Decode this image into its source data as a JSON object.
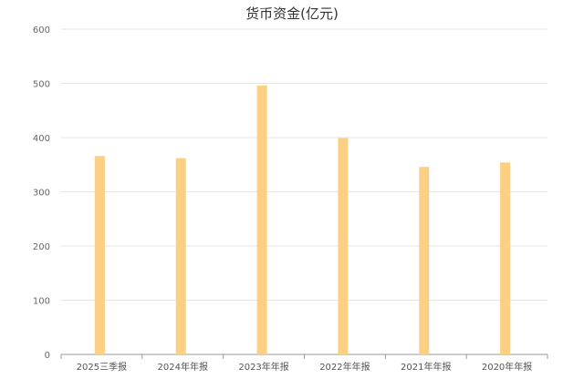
{
  "chart_data": {
    "type": "bar",
    "title": "货币资金(亿元)",
    "categories": [
      "2025三季报",
      "2024年年报",
      "2023年年报",
      "2022年年报",
      "2021年年报",
      "2020年年报"
    ],
    "values": [
      366,
      362,
      496,
      399,
      346,
      354
    ],
    "ylim": [
      0,
      600
    ],
    "yticks": [
      0,
      100,
      200,
      300,
      400,
      500,
      600
    ],
    "grid": true,
    "bar_color": "#fbd084"
  }
}
